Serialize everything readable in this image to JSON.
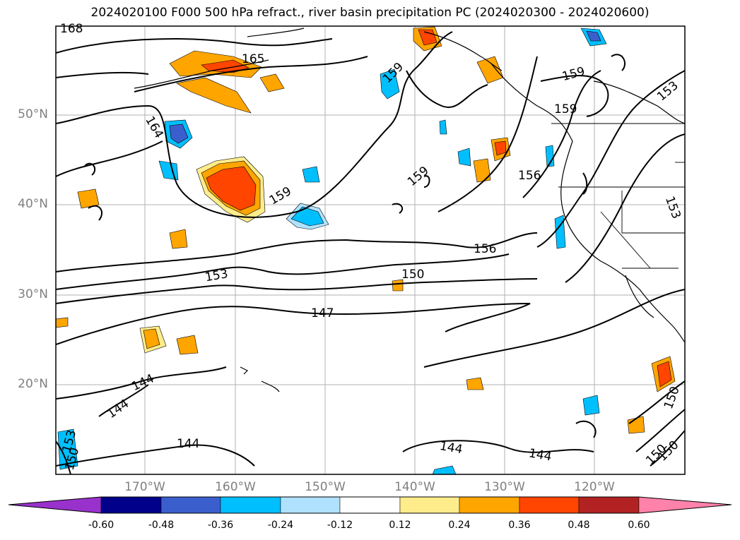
{
  "title": "2024020100 F000 500 hPa refract., river basin precipitation PC (2024020300 - 2024020600)",
  "lat_labels": [
    "50°N",
    "40°N",
    "30°N",
    "20°N"
  ],
  "lon_labels": [
    "170°W",
    "160°W",
    "150°W",
    "140°W",
    "130°W",
    "120°W"
  ],
  "contour_labels": [
    "168",
    "165",
    "164",
    "159",
    "159",
    "159",
    "159",
    "159",
    "156",
    "156",
    "153",
    "153",
    "153",
    "150",
    "147",
    "144",
    "144",
    "144",
    "144",
    "144",
    "150",
    "150",
    "153",
    "150",
    "150"
  ],
  "colorbar": {
    "ticks": [
      "-0.60",
      "-0.48",
      "-0.36",
      "-0.24",
      "-0.12",
      "0.12",
      "0.24",
      "0.36",
      "0.48",
      "0.60"
    ],
    "colors": [
      "#9932cc",
      "#00008b",
      "#3a5fcd",
      "#00bfff",
      "#b0e2ff",
      "#ffffff",
      "#ffec8b",
      "#ffa500",
      "#ff4500",
      "#b22222",
      "#ff82ab"
    ]
  }
}
